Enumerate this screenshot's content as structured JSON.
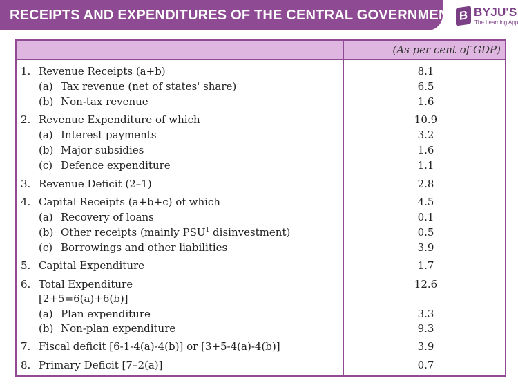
{
  "banner": {
    "title": "RECEIPTS AND EXPENDITURES OF THE CENTRAL GOVERNMENT"
  },
  "logo": {
    "mark": "B",
    "word": "BYJU'S",
    "tagline": "The Learning App",
    "color": "#7b3f86"
  },
  "table": {
    "unit_header": "(As per cent of GDP)",
    "header_color": "#dfb6df",
    "border_color": "#8e4a92",
    "rows": [
      {
        "num": "1.",
        "label": "Revenue Receipts (a+b)",
        "value": "8.1"
      },
      {
        "num": "(a)",
        "label": "Tax revenue (net of states' share)",
        "value": "6.5"
      },
      {
        "num": "(b)",
        "label": "Non-tax revenue",
        "value": "1.6"
      },
      {
        "num": "2.",
        "label": "Revenue Expenditure of which",
        "value": "10.9"
      },
      {
        "num": "(a)",
        "label": "Interest payments",
        "value": "3.2"
      },
      {
        "num": "(b)",
        "label": "Major subsidies",
        "value": "1.6"
      },
      {
        "num": "(c)",
        "label": "Defence expenditure",
        "value": "1.1"
      },
      {
        "num": "3.",
        "label": "Revenue Deficit (2–1)",
        "value": "2.8"
      },
      {
        "num": "4.",
        "label": "Capital Receipts (a+b+c) of which",
        "value": "4.5"
      },
      {
        "num": "(a)",
        "label": "Recovery of loans",
        "value": "0.1"
      },
      {
        "num": "(b)",
        "label": "Other receipts (mainly PSU",
        "sup": "1",
        "label_after": " disinvestment)",
        "value": "0.5"
      },
      {
        "num": "(c)",
        "label": "Borrowings and other liabilities",
        "value": "3.9"
      },
      {
        "num": "5.",
        "label": "Capital Expenditure",
        "value": "1.7"
      },
      {
        "num": "6.",
        "label": "Total Expenditure",
        "value": "12.6"
      },
      {
        "num": "",
        "label": "[2+5=6(a)+6(b)]",
        "value": ""
      },
      {
        "num": "(a)",
        "label": "Plan expenditure",
        "value": "3.3"
      },
      {
        "num": "(b)",
        "label": "Non-plan expenditure",
        "value": "9.3"
      },
      {
        "num": "7.",
        "label": "Fiscal deficit [6-1-4(a)-4(b)] or [3+5-4(a)-4(b)]",
        "value": "3.9"
      },
      {
        "num": "8.",
        "label": "Primary Deficit [7–2(a)]",
        "value": "0.7"
      }
    ]
  }
}
